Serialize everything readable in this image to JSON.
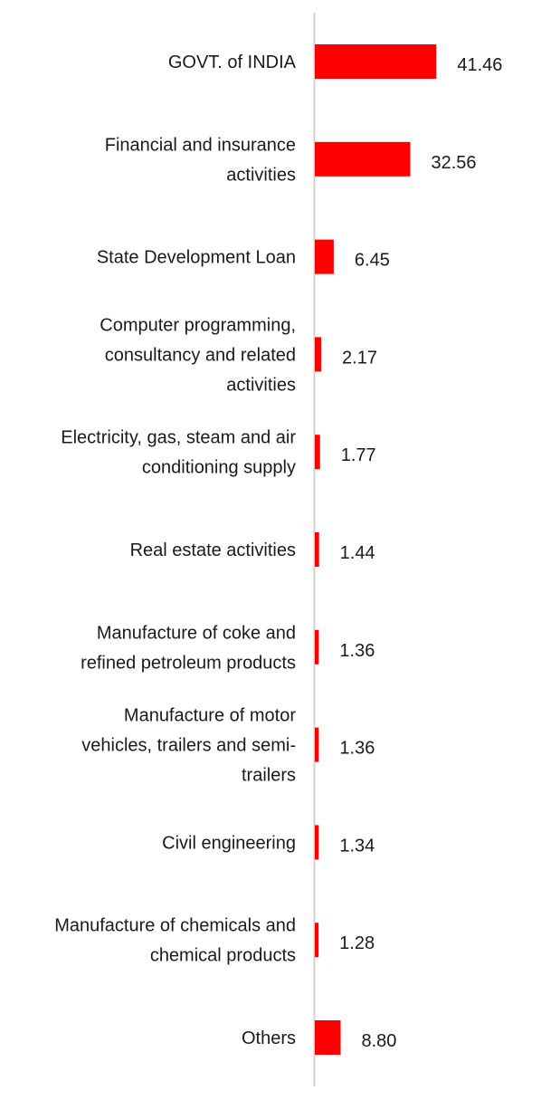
{
  "chart_data": {
    "type": "bar",
    "orientation": "horizontal",
    "categories": [
      "GOVT. of INDIA",
      "Financial and insurance activities",
      "State Development Loan",
      "Computer programming, consultancy and related activities",
      "Electricity, gas, steam and air conditioning supply",
      "Real estate activities",
      "Manufacture of coke and refined petroleum products",
      "Manufacture of motor vehicles, trailers and semi-trailers",
      "Civil engineering",
      "Manufacture of chemicals and chemical products",
      "Others"
    ],
    "category_lines": [
      [
        "GOVT. of INDIA"
      ],
      [
        "Financial and insurance",
        "activities"
      ],
      [
        "State Development Loan"
      ],
      [
        "Computer programming,",
        "consultancy and related",
        "activities"
      ],
      [
        "Electricity, gas, steam and air",
        "conditioning supply"
      ],
      [
        "Real estate activities"
      ],
      [
        "Manufacture of coke and",
        "refined petroleum products"
      ],
      [
        "Manufacture of motor",
        "vehicles, trailers and semi-",
        "trailers"
      ],
      [
        "Civil engineering"
      ],
      [
        "Manufacture of chemicals and",
        "chemical products"
      ],
      [
        "Others"
      ]
    ],
    "values": [
      41.46,
      32.56,
      6.45,
      2.17,
      1.77,
      1.44,
      1.36,
      1.36,
      1.34,
      1.28,
      8.8
    ],
    "value_labels": [
      "41.46",
      "32.56",
      "6.45",
      "2.17",
      "1.77",
      "1.44",
      "1.36",
      "1.36",
      "1.34",
      "1.28",
      "8.80"
    ],
    "title": "",
    "xlabel": "",
    "ylabel": "",
    "xlim": [
      0,
      45
    ],
    "grid": false,
    "legend": "none",
    "bar_color": "#ff0000",
    "axis_color": "#d0d0d0",
    "text_color": "#1a1a1a"
  }
}
